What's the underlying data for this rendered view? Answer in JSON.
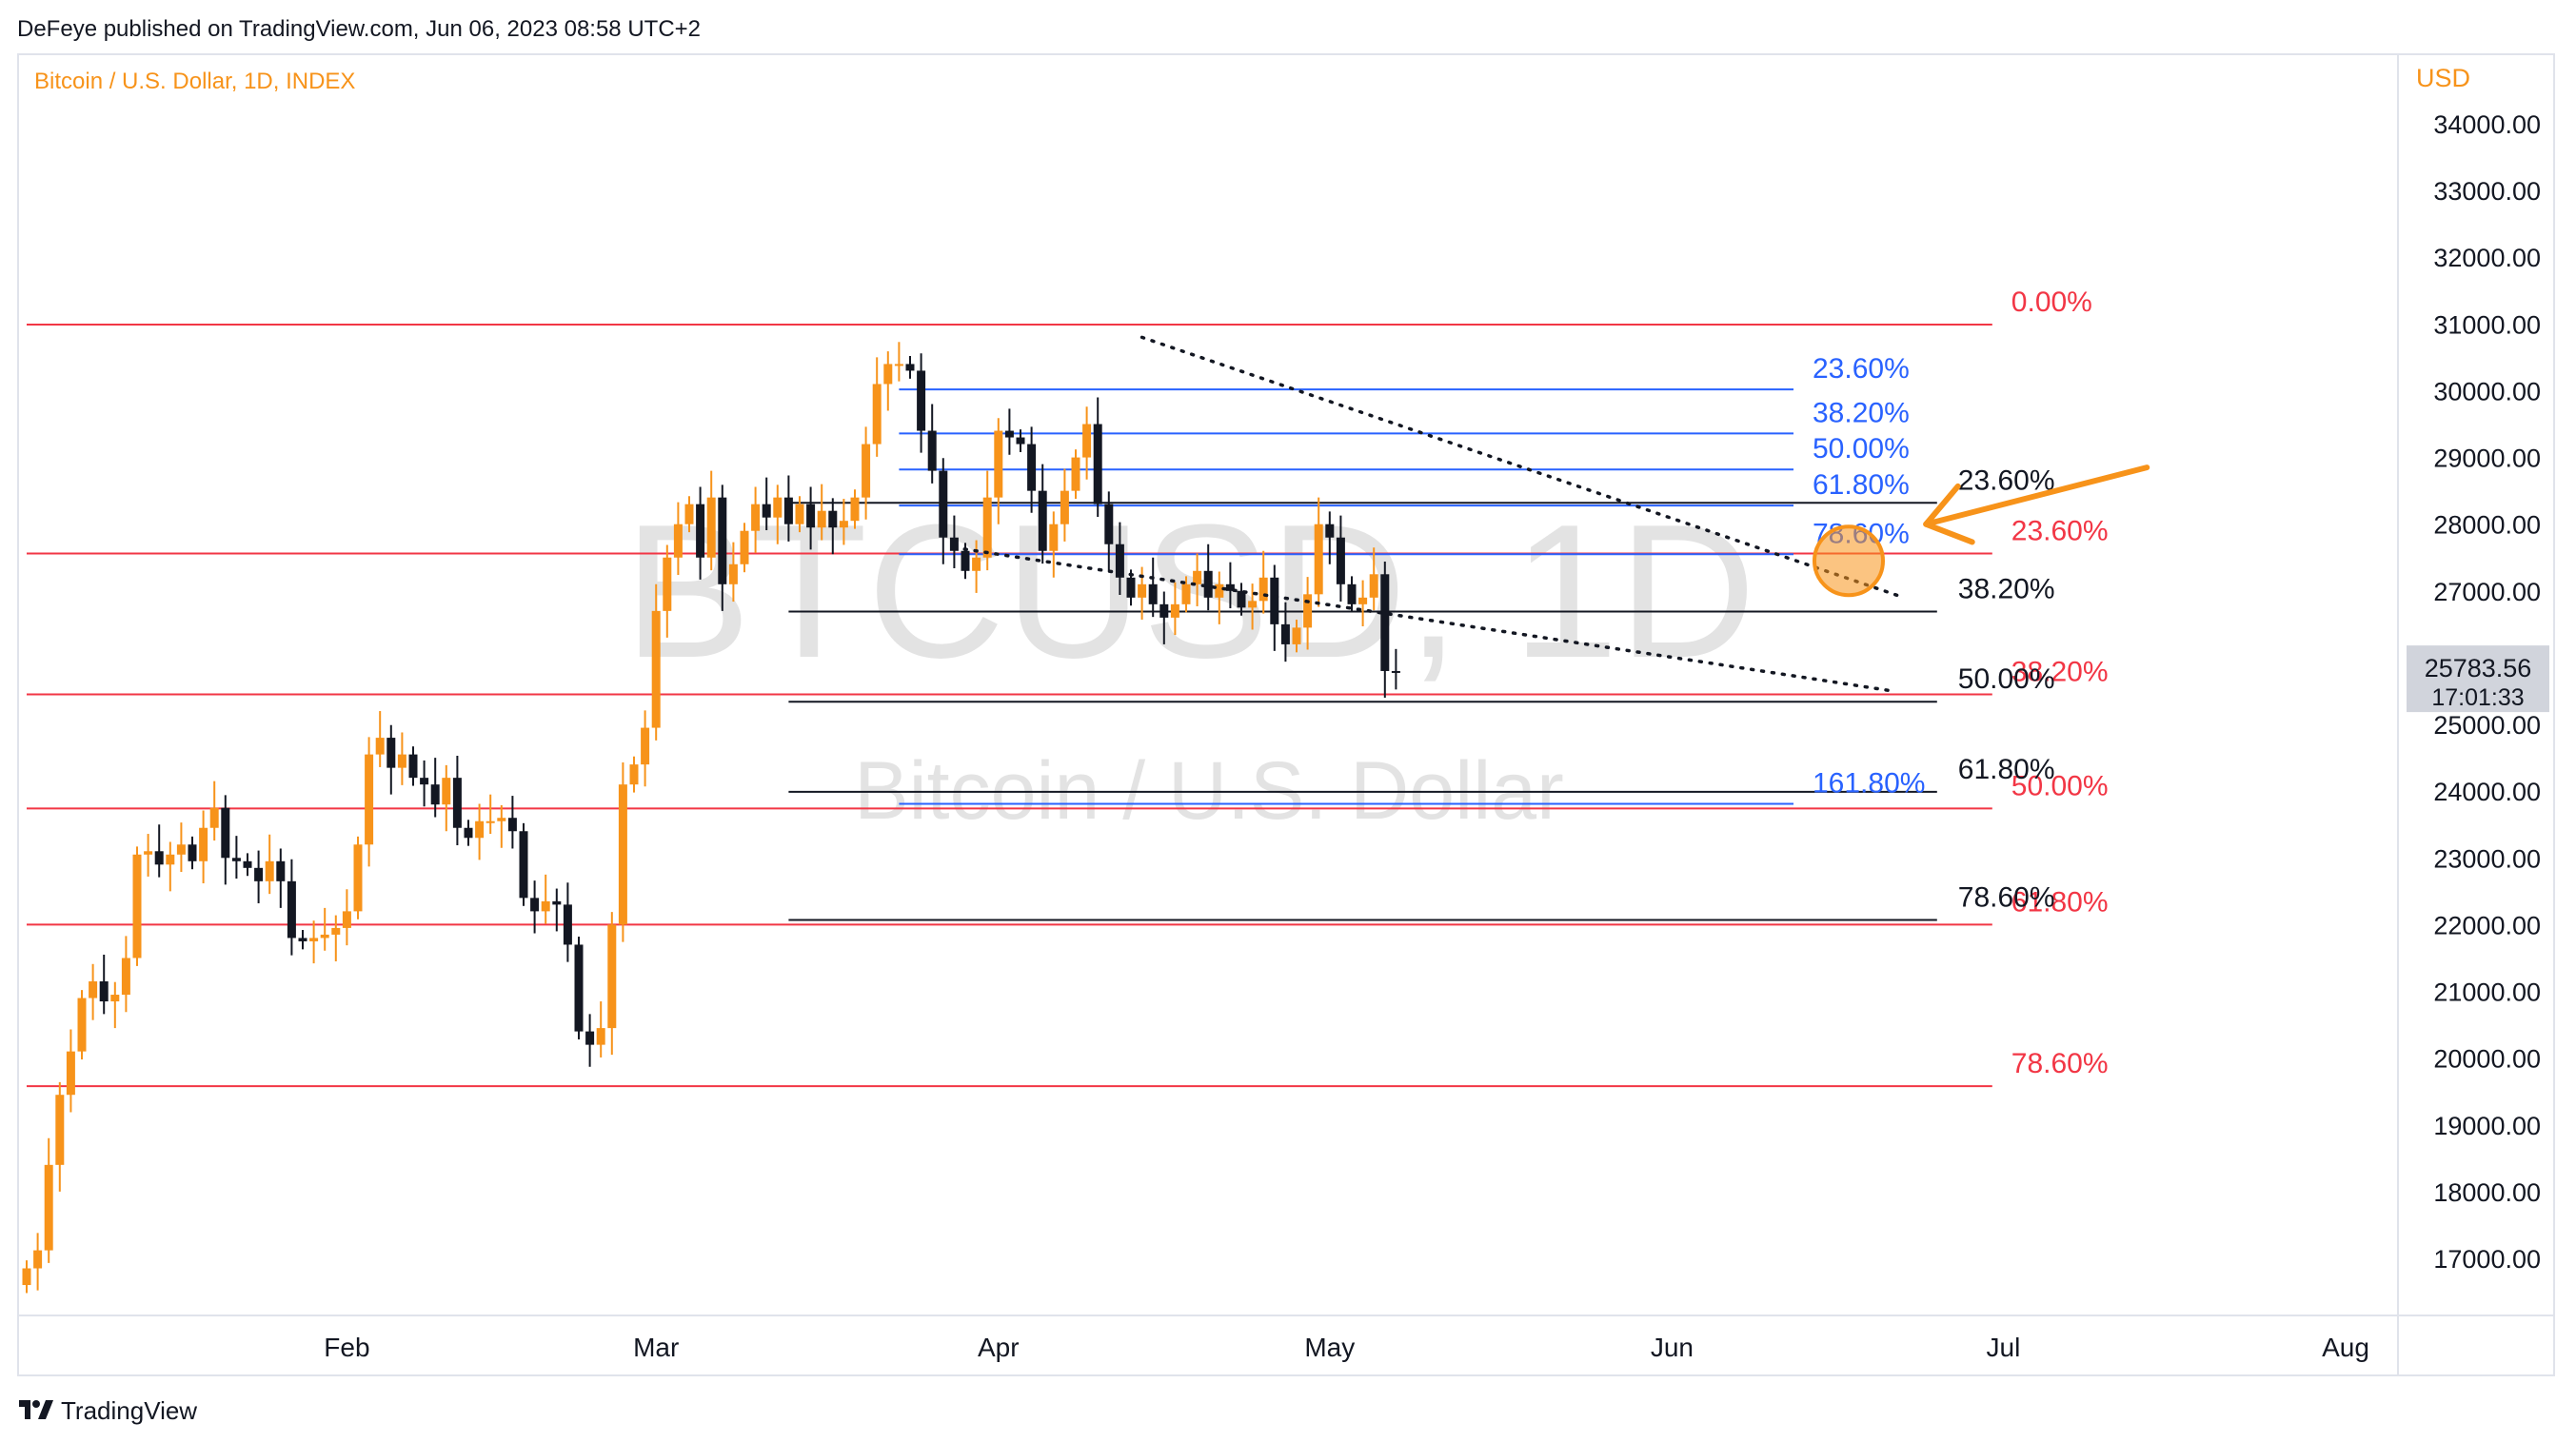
{
  "header": {
    "published": "DeFeye published on TradingView.com, Jun 06, 2023 08:58 UTC+2",
    "symbol_line": "Bitcoin / U.S. Dollar, 1D, INDEX"
  },
  "watermark": {
    "ticker": "BTCUSD, 1D",
    "name": "Bitcoin / U.S. Dollar"
  },
  "footer": {
    "brand": "TradingView"
  },
  "colors": {
    "bull": "#f7931a",
    "bear": "#131722",
    "red_fib": "#f23645",
    "blue_fib": "#2962ff",
    "black_fib": "#131722",
    "accent": "#f7931a",
    "axis_text": "#131722",
    "watermark": "#d7d7d7"
  },
  "chart_data": {
    "type": "candlestick",
    "title": "Bitcoin / U.S. Dollar, 1D, INDEX",
    "currency": "USD",
    "ylim": [
      16300,
      35000
    ],
    "y_ticks": [
      {
        "value": 17000,
        "label": "17000.00"
      },
      {
        "value": 18000,
        "label": "18000.00"
      },
      {
        "value": 19000,
        "label": "19000.00"
      },
      {
        "value": 20000,
        "label": "20000.00"
      },
      {
        "value": 21000,
        "label": "21000.00"
      },
      {
        "value": 22000,
        "label": "22000.00"
      },
      {
        "value": 23000,
        "label": "23000.00"
      },
      {
        "value": 24000,
        "label": "24000.00"
      },
      {
        "value": 25000,
        "label": "25000.00"
      },
      {
        "value": 26000,
        "label": "26000.00"
      },
      {
        "value": 27000,
        "label": "27000.00"
      },
      {
        "value": 28000,
        "label": "28000.00"
      },
      {
        "value": 29000,
        "label": "29000.00"
      },
      {
        "value": 30000,
        "label": "30000.00"
      },
      {
        "value": 31000,
        "label": "31000.00"
      },
      {
        "value": 32000,
        "label": "32000.00"
      },
      {
        "value": 33000,
        "label": "33000.00"
      },
      {
        "value": 34000,
        "label": "34000.00"
      }
    ],
    "x_ticks": [
      {
        "date": "2023-02-01",
        "label": "Feb"
      },
      {
        "date": "2023-03-01",
        "label": "Mar"
      },
      {
        "date": "2023-04-01",
        "label": "Apr"
      },
      {
        "date": "2023-05-01",
        "label": "May"
      },
      {
        "date": "2023-06-01",
        "label": "Jun"
      },
      {
        "date": "2023-07-01",
        "label": "Jul"
      },
      {
        "date": "2023-08-01",
        "label": "Aug"
      }
    ],
    "start_date": "2023-01-03",
    "close_series": [
      16850,
      17120,
      18400,
      19450,
      20100,
      20900,
      21150,
      20850,
      20950,
      21500,
      23050,
      23100,
      22900,
      23050,
      23200,
      22950,
      23450,
      23750,
      23000,
      22950,
      22850,
      22650,
      22950,
      22650,
      21800,
      21750,
      21800,
      21850,
      21950,
      22200,
      23200,
      24550,
      24800,
      24350,
      24550,
      24200,
      24100,
      23800,
      24200,
      23450,
      23300,
      23550,
      23550,
      23600,
      23400,
      22400,
      22200,
      22350,
      22300,
      21700,
      20400,
      20200,
      20450,
      22000,
      24100,
      24400,
      24950,
      26700,
      27500,
      28000,
      28300,
      27500,
      28400,
      27100,
      27400,
      27900,
      28300,
      28100,
      28400,
      28000,
      28300,
      27950,
      28200,
      27950,
      28050,
      28400,
      29200,
      30100,
      30400,
      30400,
      30300,
      29400,
      28800,
      27800,
      27600,
      27300,
      27500,
      28400,
      29400,
      29300,
      29200,
      28500,
      27600,
      28000,
      28500,
      29000,
      29500,
      28300,
      27700,
      27200,
      26900,
      27100,
      26800,
      26600,
      26800,
      27100,
      27300,
      26900,
      27100,
      27000,
      26750,
      26850,
      27200,
      26500,
      26200,
      26450,
      26950,
      28000,
      27800,
      27100,
      26800,
      26900,
      27250,
      25800,
      25783.56
    ],
    "last_price": {
      "value": 25783.56,
      "label": "25783.56",
      "countdown": "17:01:33"
    },
    "fib_red": {
      "range_dates": [
        "2023-01-03",
        "2023-06-30"
      ],
      "levels": [
        {
          "price": 30990,
          "label": "0.00%"
        },
        {
          "price": 27560,
          "label": "23.60%"
        },
        {
          "price": 25450,
          "label": "38.20%"
        },
        {
          "price": 23740,
          "label": "50.00%"
        },
        {
          "price": 22000,
          "label": "61.80%"
        },
        {
          "price": 19580,
          "label": "78.60%"
        }
      ]
    },
    "fib_black": {
      "range_dates": [
        "2023-03-13",
        "2023-06-25"
      ],
      "levels": [
        {
          "price": 28320,
          "label": "23.60%"
        },
        {
          "price": 26690,
          "label": "38.20%"
        },
        {
          "price": 25340,
          "label": "50.00%"
        },
        {
          "price": 23990,
          "label": "61.80%"
        },
        {
          "price": 22070,
          "label": "78.60%"
        }
      ]
    },
    "fib_blue": {
      "range_dates": [
        "2023-03-23",
        "2023-06-12"
      ],
      "levels": [
        {
          "price": 30020,
          "label": "23.60%"
        },
        {
          "price": 29360,
          "label": "38.20%"
        },
        {
          "price": 28820,
          "label": "50.00%"
        },
        {
          "price": 28280,
          "label": "61.80%"
        },
        {
          "price": 27550,
          "label": "78.60%"
        },
        {
          "price": 23810,
          "label": "161.80%"
        }
      ]
    },
    "trendlines": [
      {
        "from": {
          "date": "2023-04-14",
          "price": 30800
        },
        "to": {
          "date": "2023-06-22",
          "price": 26900
        }
      },
      {
        "from": {
          "date": "2023-03-28",
          "price": 27650
        },
        "to": {
          "date": "2023-06-21",
          "price": 25500
        }
      }
    ],
    "marker": {
      "date": "2023-06-17",
      "price": 27450
    },
    "arrow": {
      "from": {
        "date": "2023-07-14",
        "price": 28850
      },
      "to": {
        "date": "2023-06-24",
        "price": 28000
      }
    }
  }
}
